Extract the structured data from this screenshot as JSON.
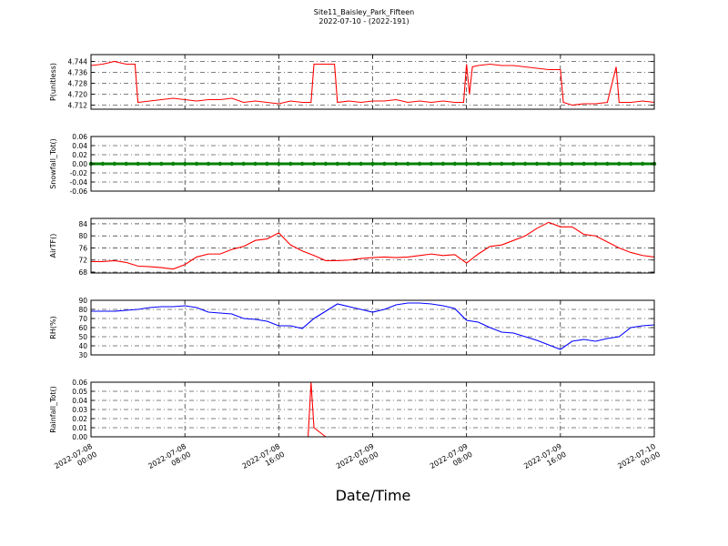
{
  "title": "Site11_Baisley_Park_Fifteen",
  "subtitle": "2022-07-10 - (2022-191)",
  "xlabel": "Date/Time",
  "xlim": [
    "2022-07-08 00:00",
    "2022-07-10 00:00"
  ],
  "xticks": [
    "2022-07-08 00:00",
    "2022-07-08 08:00",
    "2022-07-08 16:00",
    "2022-07-09 00:00",
    "2022-07-09 08:00",
    "2022-07-09 16:00",
    "2022-07-10 00:00"
  ],
  "grid": true,
  "chart_data": [
    {
      "type": "line",
      "ylabel": "P(unitless)",
      "color": "#ff0000",
      "x": [
        "2022-07-08 00:00",
        "2022-07-08 01:00",
        "2022-07-08 02:00",
        "2022-07-08 03:00",
        "2022-07-08 03:45",
        "2022-07-08 04:00",
        "2022-07-08 05:00",
        "2022-07-08 06:00",
        "2022-07-08 07:00",
        "2022-07-08 08:00",
        "2022-07-08 09:00",
        "2022-07-08 10:00",
        "2022-07-08 11:00",
        "2022-07-08 12:00",
        "2022-07-08 13:00",
        "2022-07-08 14:00",
        "2022-07-08 15:00",
        "2022-07-08 16:00",
        "2022-07-08 17:00",
        "2022-07-08 18:00",
        "2022-07-08 18:45",
        "2022-07-08 19:00",
        "2022-07-08 20:00",
        "2022-07-08 20:45",
        "2022-07-08 21:00",
        "2022-07-08 22:00",
        "2022-07-08 23:00",
        "2022-07-09 00:00",
        "2022-07-09 01:00",
        "2022-07-09 02:00",
        "2022-07-09 03:00",
        "2022-07-09 04:00",
        "2022-07-09 05:00",
        "2022-07-09 06:00",
        "2022-07-09 07:00",
        "2022-07-09 07:45",
        "2022-07-09 08:00",
        "2022-07-09 08:15",
        "2022-07-09 08:30",
        "2022-07-09 09:00",
        "2022-07-09 10:00",
        "2022-07-09 11:00",
        "2022-07-09 12:00",
        "2022-07-09 13:00",
        "2022-07-09 14:00",
        "2022-07-09 15:00",
        "2022-07-09 16:00",
        "2022-07-09 16:15",
        "2022-07-09 17:00",
        "2022-07-09 18:00",
        "2022-07-09 19:00",
        "2022-07-09 20:00",
        "2022-07-09 20:45",
        "2022-07-09 21:00",
        "2022-07-09 22:00",
        "2022-07-09 23:00",
        "2022-07-10 00:00"
      ],
      "values": [
        4.741,
        4.742,
        4.744,
        4.742,
        4.742,
        4.714,
        4.715,
        4.716,
        4.717,
        4.716,
        4.715,
        4.716,
        4.716,
        4.717,
        4.714,
        4.715,
        4.714,
        4.713,
        4.715,
        4.714,
        4.714,
        4.742,
        4.742,
        4.742,
        4.714,
        4.715,
        4.714,
        4.715,
        4.715,
        4.716,
        4.714,
        4.715,
        4.714,
        4.715,
        4.714,
        4.714,
        4.742,
        4.72,
        4.74,
        4.741,
        4.742,
        4.741,
        4.741,
        4.74,
        4.739,
        4.738,
        4.738,
        4.714,
        4.712,
        4.713,
        4.713,
        4.714,
        4.74,
        4.714,
        4.714,
        4.715,
        4.714
      ],
      "ylim": [
        4.709,
        4.749
      ],
      "yticks": [
        4.712,
        {
          "value": 4.72,
          "label": "4.720"
        },
        4.728,
        4.736,
        4.744
      ]
    },
    {
      "type": "line",
      "ylabel": "Snowfall_Tot()",
      "color": "#008000",
      "markers": true,
      "x": [
        "2022-07-08 00:00",
        "2022-07-08 01:00",
        "2022-07-08 02:00",
        "2022-07-08 03:00",
        "2022-07-08 04:00",
        "2022-07-08 05:00",
        "2022-07-08 06:00",
        "2022-07-08 07:00",
        "2022-07-08 08:00",
        "2022-07-08 09:00",
        "2022-07-08 10:00",
        "2022-07-08 11:00",
        "2022-07-08 12:00",
        "2022-07-08 13:00",
        "2022-07-08 14:00",
        "2022-07-08 15:00",
        "2022-07-08 16:00",
        "2022-07-08 17:00",
        "2022-07-08 18:00",
        "2022-07-08 19:00",
        "2022-07-08 20:00",
        "2022-07-08 21:00",
        "2022-07-08 22:00",
        "2022-07-08 23:00",
        "2022-07-09 00:00",
        "2022-07-09 01:00",
        "2022-07-09 02:00",
        "2022-07-09 03:00",
        "2022-07-09 04:00",
        "2022-07-09 05:00",
        "2022-07-09 06:00",
        "2022-07-09 07:00",
        "2022-07-09 08:00",
        "2022-07-09 09:00",
        "2022-07-09 10:00",
        "2022-07-09 11:00",
        "2022-07-09 12:00",
        "2022-07-09 13:00",
        "2022-07-09 14:00",
        "2022-07-09 15:00",
        "2022-07-09 16:00",
        "2022-07-09 17:00",
        "2022-07-09 18:00",
        "2022-07-09 19:00",
        "2022-07-09 20:00",
        "2022-07-09 21:00",
        "2022-07-09 22:00",
        "2022-07-09 23:00",
        "2022-07-10 00:00"
      ],
      "values": [
        0,
        0,
        0,
        0,
        0,
        0,
        0,
        0,
        0,
        0,
        0,
        0,
        0,
        0,
        0,
        0,
        0,
        0,
        0,
        0,
        0,
        0,
        0,
        0,
        0,
        0,
        0,
        0,
        0,
        0,
        0,
        0,
        0,
        0,
        0,
        0,
        0,
        0,
        0,
        0,
        0,
        0,
        0,
        0,
        0,
        0,
        0,
        0,
        0
      ],
      "ylim": [
        -0.06,
        0.06
      ],
      "yticks": [
        -0.06,
        -0.04,
        -0.02,
        {
          "value": 0,
          "label": "0.00"
        },
        0.02,
        0.04,
        0.06
      ]
    },
    {
      "type": "line",
      "ylabel": "AirTF()",
      "color": "#ff0000",
      "x": [
        "2022-07-08 00:00",
        "2022-07-08 01:00",
        "2022-07-08 02:00",
        "2022-07-08 03:00",
        "2022-07-08 04:00",
        "2022-07-08 05:00",
        "2022-07-08 06:00",
        "2022-07-08 07:00",
        "2022-07-08 08:00",
        "2022-07-08 09:00",
        "2022-07-08 10:00",
        "2022-07-08 11:00",
        "2022-07-08 12:00",
        "2022-07-08 13:00",
        "2022-07-08 14:00",
        "2022-07-08 15:00",
        "2022-07-08 16:00",
        "2022-07-08 17:00",
        "2022-07-08 18:00",
        "2022-07-08 19:00",
        "2022-07-08 20:00",
        "2022-07-08 21:00",
        "2022-07-08 22:00",
        "2022-07-08 23:00",
        "2022-07-09 00:00",
        "2022-07-09 01:00",
        "2022-07-09 02:00",
        "2022-07-09 03:00",
        "2022-07-09 04:00",
        "2022-07-09 05:00",
        "2022-07-09 06:00",
        "2022-07-09 07:00",
        "2022-07-09 08:00",
        "2022-07-09 09:00",
        "2022-07-09 10:00",
        "2022-07-09 11:00",
        "2022-07-09 12:00",
        "2022-07-09 13:00",
        "2022-07-09 14:00",
        "2022-07-09 15:00",
        "2022-07-09 16:00",
        "2022-07-09 17:00",
        "2022-07-09 18:00",
        "2022-07-09 19:00",
        "2022-07-09 20:00",
        "2022-07-09 21:00",
        "2022-07-09 22:00",
        "2022-07-09 23:00",
        "2022-07-10 00:00"
      ],
      "values": [
        71.5,
        71.5,
        71.8,
        71.2,
        70,
        69.8,
        69.5,
        69,
        70.5,
        73,
        74,
        74,
        75.5,
        76.5,
        78.5,
        79,
        81,
        77,
        75,
        73.5,
        71.8,
        71.8,
        72,
        72.5,
        72.8,
        73,
        72.8,
        73,
        73.5,
        74,
        73.5,
        73.8,
        71,
        74,
        76.5,
        77,
        78.5,
        80,
        82.5,
        84.5,
        83,
        83,
        80.5,
        80,
        78,
        76,
        74.5,
        73.5,
        73
      ],
      "ylim": [
        67.7,
        85.8
      ],
      "yticks": [
        68,
        72,
        76,
        80,
        84
      ]
    },
    {
      "type": "line",
      "ylabel": "RH(%)",
      "color": "#0000ff",
      "x": [
        "2022-07-08 00:00",
        "2022-07-08 01:00",
        "2022-07-08 02:00",
        "2022-07-08 03:00",
        "2022-07-08 04:00",
        "2022-07-08 05:00",
        "2022-07-08 06:00",
        "2022-07-08 07:00",
        "2022-07-08 08:00",
        "2022-07-08 09:00",
        "2022-07-08 10:00",
        "2022-07-08 11:00",
        "2022-07-08 12:00",
        "2022-07-08 13:00",
        "2022-07-08 14:00",
        "2022-07-08 15:00",
        "2022-07-08 16:00",
        "2022-07-08 17:00",
        "2022-07-08 18:00",
        "2022-07-08 19:00",
        "2022-07-08 20:00",
        "2022-07-08 21:00",
        "2022-07-08 22:00",
        "2022-07-08 23:00",
        "2022-07-09 00:00",
        "2022-07-09 01:00",
        "2022-07-09 02:00",
        "2022-07-09 03:00",
        "2022-07-09 04:00",
        "2022-07-09 05:00",
        "2022-07-09 06:00",
        "2022-07-09 07:00",
        "2022-07-09 08:00",
        "2022-07-09 09:00",
        "2022-07-09 10:00",
        "2022-07-09 11:00",
        "2022-07-09 12:00",
        "2022-07-09 13:00",
        "2022-07-09 14:00",
        "2022-07-09 15:00",
        "2022-07-09 16:00",
        "2022-07-09 17:00",
        "2022-07-09 18:00",
        "2022-07-09 19:00",
        "2022-07-09 20:00",
        "2022-07-09 21:00",
        "2022-07-09 22:00",
        "2022-07-09 23:00",
        "2022-07-10 00:00"
      ],
      "values": [
        78,
        78,
        78,
        79,
        80,
        82,
        83,
        83,
        84,
        82,
        77,
        76,
        75,
        70,
        69,
        67,
        62,
        62,
        59,
        70,
        78,
        86,
        83,
        80,
        77,
        80,
        85,
        87,
        87,
        86,
        84,
        81,
        68,
        66,
        60,
        55,
        54,
        50,
        46,
        41,
        36,
        45,
        47,
        45,
        48,
        50,
        60,
        62,
        63
      ],
      "ylim": [
        30,
        90
      ],
      "yticks": [
        30,
        40,
        50,
        60,
        70,
        80,
        90
      ]
    },
    {
      "type": "line",
      "ylabel": "Rainfall_Tot()",
      "color": "#ff0000",
      "x": [
        "2022-07-08 00:00",
        "2022-07-08 01:00",
        "2022-07-08 02:00",
        "2022-07-08 03:00",
        "2022-07-08 04:00",
        "2022-07-08 05:00",
        "2022-07-08 06:00",
        "2022-07-08 07:00",
        "2022-07-08 08:00",
        "2022-07-08 09:00",
        "2022-07-08 10:00",
        "2022-07-08 11:00",
        "2022-07-08 12:00",
        "2022-07-08 13:00",
        "2022-07-08 14:00",
        "2022-07-08 15:00",
        "2022-07-08 16:00",
        "2022-07-08 17:00",
        "2022-07-08 18:00",
        "2022-07-08 18:30",
        "2022-07-08 18:45",
        "2022-07-08 19:00",
        "2022-07-08 20:00",
        "2022-07-08 21:00",
        "2022-07-08 22:00",
        "2022-07-08 23:00",
        "2022-07-09 00:00",
        "2022-07-09 01:00",
        "2022-07-09 02:00",
        "2022-07-09 03:00",
        "2022-07-09 04:00",
        "2022-07-09 05:00",
        "2022-07-09 06:00",
        "2022-07-09 07:00",
        "2022-07-09 08:00",
        "2022-07-09 09:00",
        "2022-07-09 10:00",
        "2022-07-09 11:00",
        "2022-07-09 12:00",
        "2022-07-09 13:00",
        "2022-07-09 14:00",
        "2022-07-09 15:00",
        "2022-07-09 16:00",
        "2022-07-09 17:00",
        "2022-07-09 18:00",
        "2022-07-09 19:00",
        "2022-07-09 20:00",
        "2022-07-09 21:00",
        "2022-07-09 22:00",
        "2022-07-09 23:00",
        "2022-07-10 00:00"
      ],
      "values": [
        0,
        0,
        0,
        0,
        0,
        0,
        0,
        0,
        0,
        0,
        0,
        0,
        0,
        0,
        0,
        0,
        0,
        0,
        0,
        0,
        0.06,
        0.01,
        0,
        0,
        0,
        0,
        0,
        0,
        0,
        0,
        0,
        0,
        0,
        0,
        0,
        0,
        0,
        0,
        0,
        0,
        0,
        0,
        0,
        0,
        0,
        0,
        0,
        0,
        0,
        0,
        0
      ],
      "ylim": [
        0,
        0.06
      ],
      "yticks": [
        {
          "value": 0,
          "label": "0.00"
        },
        0.01,
        0.02,
        0.03,
        0.04,
        0.05,
        0.06
      ]
    }
  ]
}
